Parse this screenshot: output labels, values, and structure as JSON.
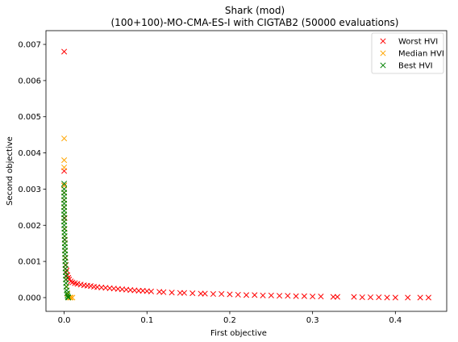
{
  "chart_data": {
    "type": "scatter",
    "title": "Shark (mod)",
    "subtitle": "(100+100)-MO-CMA-ES-I with CIGTAB2 (50000 evaluations)",
    "xlabel": "First objective",
    "ylabel": "Second objective",
    "xlim": [
      -0.022,
      0.462
    ],
    "ylim": [
      -0.00038,
      0.00738
    ],
    "x_ticks": [
      0.0,
      0.1,
      0.2,
      0.3,
      0.4
    ],
    "x_tick_labels": [
      "0.0",
      "0.1",
      "0.2",
      "0.3",
      "0.4"
    ],
    "y_ticks": [
      0.0,
      0.001,
      0.002,
      0.003,
      0.004,
      0.005,
      0.006,
      0.007
    ],
    "y_tick_labels": [
      "0.000",
      "0.001",
      "0.002",
      "0.003",
      "0.004",
      "0.005",
      "0.006",
      "0.007"
    ],
    "grid": false,
    "legend_position": "top-right",
    "marker": "x",
    "series": [
      {
        "name": "Worst HVI",
        "color": "#ff0000",
        "points": [
          [
            0.0,
            0.0068
          ],
          [
            0.0,
            0.0035
          ],
          [
            0.0,
            0.0031
          ],
          [
            0.0,
            0.0029
          ],
          [
            0.0,
            0.0027
          ],
          [
            0.0,
            0.0025
          ],
          [
            0.0005,
            0.0022
          ],
          [
            0.0005,
            0.0019
          ],
          [
            0.0008,
            0.0016
          ],
          [
            0.001,
            0.0013
          ],
          [
            0.0015,
            0.0011
          ],
          [
            0.002,
            0.0009
          ],
          [
            0.003,
            0.00075
          ],
          [
            0.004,
            0.00062
          ],
          [
            0.005,
            0.00055
          ],
          [
            0.006,
            0.0005
          ],
          [
            0.008,
            0.00045
          ],
          [
            0.01,
            0.00042
          ],
          [
            0.013,
            0.0004
          ],
          [
            0.016,
            0.00038
          ],
          [
            0.02,
            0.00036
          ],
          [
            0.024,
            0.00034
          ],
          [
            0.028,
            0.00033
          ],
          [
            0.032,
            0.00032
          ],
          [
            0.036,
            0.0003
          ],
          [
            0.04,
            0.00029
          ],
          [
            0.045,
            0.00028
          ],
          [
            0.05,
            0.00027
          ],
          [
            0.055,
            0.00026
          ],
          [
            0.06,
            0.00025
          ],
          [
            0.065,
            0.00024
          ],
          [
            0.07,
            0.00023
          ],
          [
            0.075,
            0.00022
          ],
          [
            0.08,
            0.00021
          ],
          [
            0.085,
            0.0002
          ],
          [
            0.09,
            0.00019
          ],
          [
            0.095,
            0.00019
          ],
          [
            0.1,
            0.00018
          ],
          [
            0.105,
            0.00017
          ],
          [
            0.115,
            0.00016
          ],
          [
            0.12,
            0.00015
          ],
          [
            0.13,
            0.00014
          ],
          [
            0.14,
            0.00013
          ],
          [
            0.145,
            0.00013
          ],
          [
            0.155,
            0.00012
          ],
          [
            0.165,
            0.00011
          ],
          [
            0.17,
            0.00011
          ],
          [
            0.18,
            0.0001
          ],
          [
            0.19,
            0.0001
          ],
          [
            0.2,
            9e-05
          ],
          [
            0.21,
            8e-05
          ],
          [
            0.22,
            7e-05
          ],
          [
            0.23,
            7e-05
          ],
          [
            0.24,
            6e-05
          ],
          [
            0.25,
            6e-05
          ],
          [
            0.26,
            5e-05
          ],
          [
            0.27,
            5e-05
          ],
          [
            0.28,
            4e-05
          ],
          [
            0.29,
            4e-05
          ],
          [
            0.3,
            3e-05
          ],
          [
            0.31,
            3e-05
          ],
          [
            0.325,
            2e-05
          ],
          [
            0.33,
            2e-05
          ],
          [
            0.35,
            2e-05
          ],
          [
            0.36,
            1e-05
          ],
          [
            0.37,
            1e-05
          ],
          [
            0.38,
            1e-05
          ],
          [
            0.39,
            0.0
          ],
          [
            0.4,
            0.0
          ],
          [
            0.415,
            0.0
          ],
          [
            0.43,
            0.0
          ],
          [
            0.44,
            0.0
          ]
        ]
      },
      {
        "name": "Median HVI",
        "color": "#ffa500",
        "points": [
          [
            0.0,
            0.0044
          ],
          [
            0.0,
            0.0038
          ],
          [
            0.0,
            0.0036
          ],
          [
            0.0,
            0.0031
          ],
          [
            0.0,
            0.0029
          ],
          [
            0.0,
            0.0027
          ],
          [
            0.0,
            0.0025
          ],
          [
            0.0,
            0.0023
          ],
          [
            0.0,
            0.0021
          ],
          [
            0.0005,
            0.0019
          ],
          [
            0.0005,
            0.0017
          ],
          [
            0.0008,
            0.0015
          ],
          [
            0.001,
            0.0013
          ],
          [
            0.001,
            0.0011
          ],
          [
            0.0015,
            0.0009
          ],
          [
            0.002,
            0.0007
          ],
          [
            0.002,
            0.0005
          ],
          [
            0.003,
            0.0003
          ],
          [
            0.004,
            0.0001
          ],
          [
            0.005,
            0.0
          ],
          [
            0.007,
            0.0
          ],
          [
            0.008,
            0.0
          ],
          [
            0.01,
            0.0
          ]
        ]
      },
      {
        "name": "Best HVI",
        "color": "#008000",
        "points": [
          [
            0.0,
            0.00315
          ],
          [
            0.0,
            0.003
          ],
          [
            0.0,
            0.0029
          ],
          [
            0.0,
            0.0028
          ],
          [
            0.0,
            0.0027
          ],
          [
            0.0,
            0.0026
          ],
          [
            0.0,
            0.0025
          ],
          [
            0.0,
            0.0024
          ],
          [
            0.0,
            0.0023
          ],
          [
            0.0,
            0.0022
          ],
          [
            0.0,
            0.0021
          ],
          [
            0.0,
            0.002
          ],
          [
            0.0003,
            0.0019
          ],
          [
            0.0003,
            0.0018
          ],
          [
            0.0005,
            0.0017
          ],
          [
            0.0005,
            0.0016
          ],
          [
            0.0008,
            0.0015
          ],
          [
            0.0008,
            0.0014
          ],
          [
            0.001,
            0.0013
          ],
          [
            0.001,
            0.0012
          ],
          [
            0.0012,
            0.0011
          ],
          [
            0.0012,
            0.001
          ],
          [
            0.0015,
            0.0009
          ],
          [
            0.0015,
            0.0008
          ],
          [
            0.0018,
            0.0007
          ],
          [
            0.002,
            0.0006
          ],
          [
            0.002,
            0.0005
          ],
          [
            0.0022,
            0.0004
          ],
          [
            0.0025,
            0.0003
          ],
          [
            0.003,
            0.0002
          ],
          [
            0.0035,
            0.00012
          ],
          [
            0.004,
            6e-05
          ],
          [
            0.0045,
            2e-05
          ],
          [
            0.005,
            0.0
          ]
        ]
      }
    ]
  }
}
